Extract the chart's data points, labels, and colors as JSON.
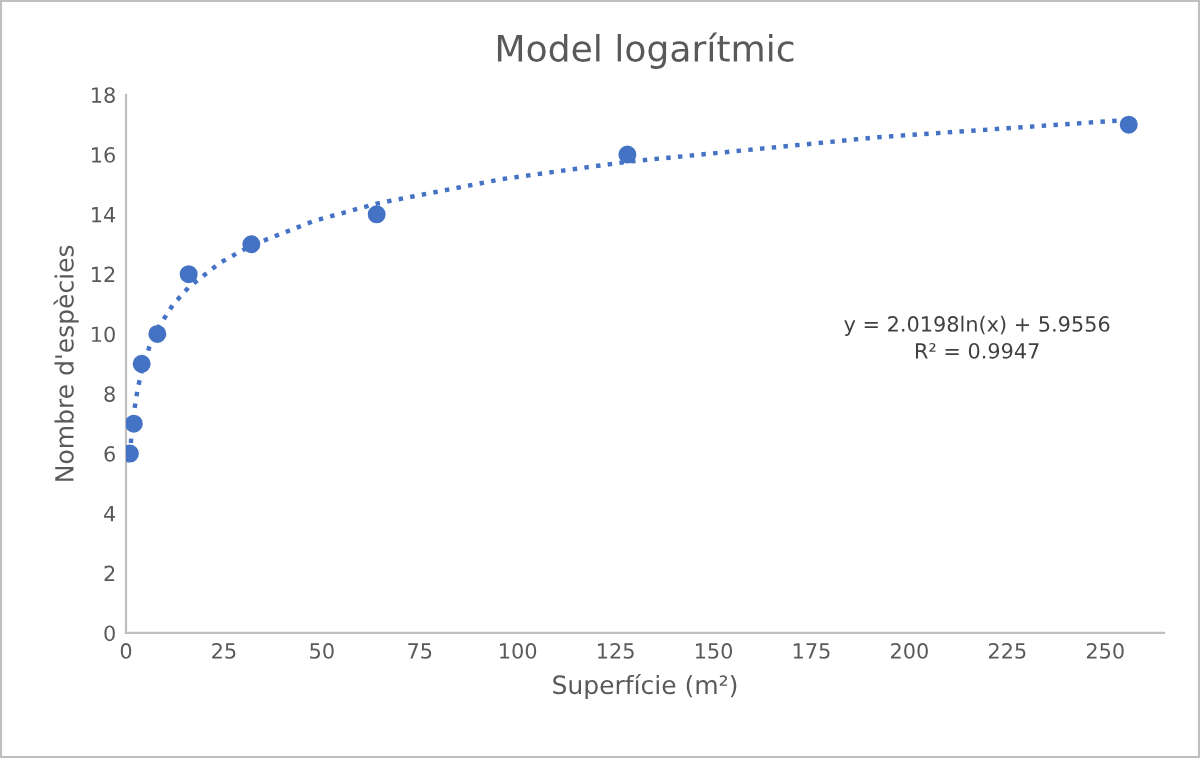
{
  "chart_data": {
    "type": "scatter",
    "title": "Model logarítmic",
    "xlabel": "Superfície (m²)",
    "ylabel": "Nombre d'espècies",
    "series": [
      {
        "color": "#4472c4",
        "marker": "circle",
        "x": [
          1,
          2,
          4,
          8,
          16,
          32,
          64,
          128,
          256
        ],
        "values": [
          6,
          7,
          9,
          10,
          12,
          13,
          14,
          16,
          17
        ]
      },
      {
        "type": "line",
        "color": "#4472c4",
        "line_style": "dotted",
        "marker": "none",
        "x": [
          1,
          1.5,
          2,
          3,
          4,
          6,
          8,
          12,
          16,
          24,
          32,
          48,
          64,
          96,
          128,
          192,
          256
        ],
        "values": [
          5.96,
          6.78,
          7.36,
          8.17,
          8.76,
          9.58,
          10.16,
          10.98,
          11.56,
          12.38,
          12.96,
          13.78,
          14.36,
          15.18,
          15.76,
          16.58,
          17.16
        ]
      }
    ],
    "annotations": [
      "y = 2.0198ln(x) + 5.9556",
      "R² = 0.9947"
    ],
    "xlim": [
      0,
      265
    ],
    "xticks": [
      0,
      25,
      50,
      75,
      100,
      125,
      150,
      175,
      200,
      225,
      250
    ],
    "ylim": [
      0,
      18
    ],
    "yticks": [
      0,
      2,
      4,
      6,
      8,
      10,
      12,
      14,
      16,
      18
    ],
    "grid": false,
    "legend": false
  }
}
